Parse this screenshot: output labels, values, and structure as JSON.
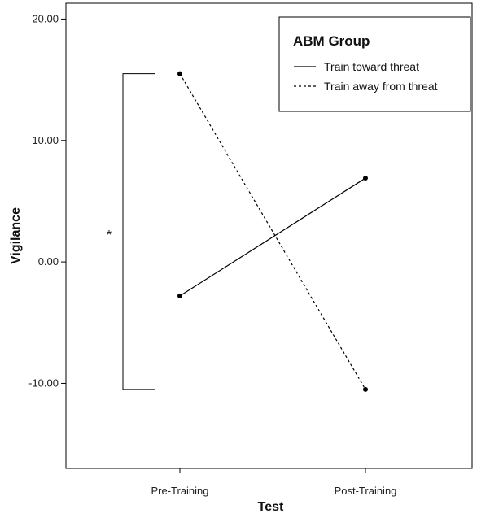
{
  "chart_data": {
    "type": "line",
    "title": "",
    "xlabel": "Test",
    "ylabel": "Vigilance",
    "categories": [
      "Pre-Training",
      "Post-Training"
    ],
    "ylim": [
      -17,
      21.3
    ],
    "yticks": [
      -10,
      0,
      10,
      20
    ],
    "ytick_labels": [
      "-10.00",
      "0.00",
      "10.00",
      "20.00"
    ],
    "grid": false,
    "legend": {
      "title": "ABM Group",
      "placement": "top-right"
    },
    "series": [
      {
        "name": "Train toward threat",
        "style": "solid",
        "color": "#000000",
        "values": [
          -2.8,
          6.9
        ]
      },
      {
        "name": "Train away from threat",
        "style": "dotted",
        "color": "#000000",
        "values": [
          15.5,
          -10.5
        ]
      }
    ],
    "annotations": [
      {
        "text": "*",
        "type": "significance-bracket",
        "category": "Pre-Training",
        "y_range": [
          -10.5,
          15.5
        ]
      }
    ]
  }
}
